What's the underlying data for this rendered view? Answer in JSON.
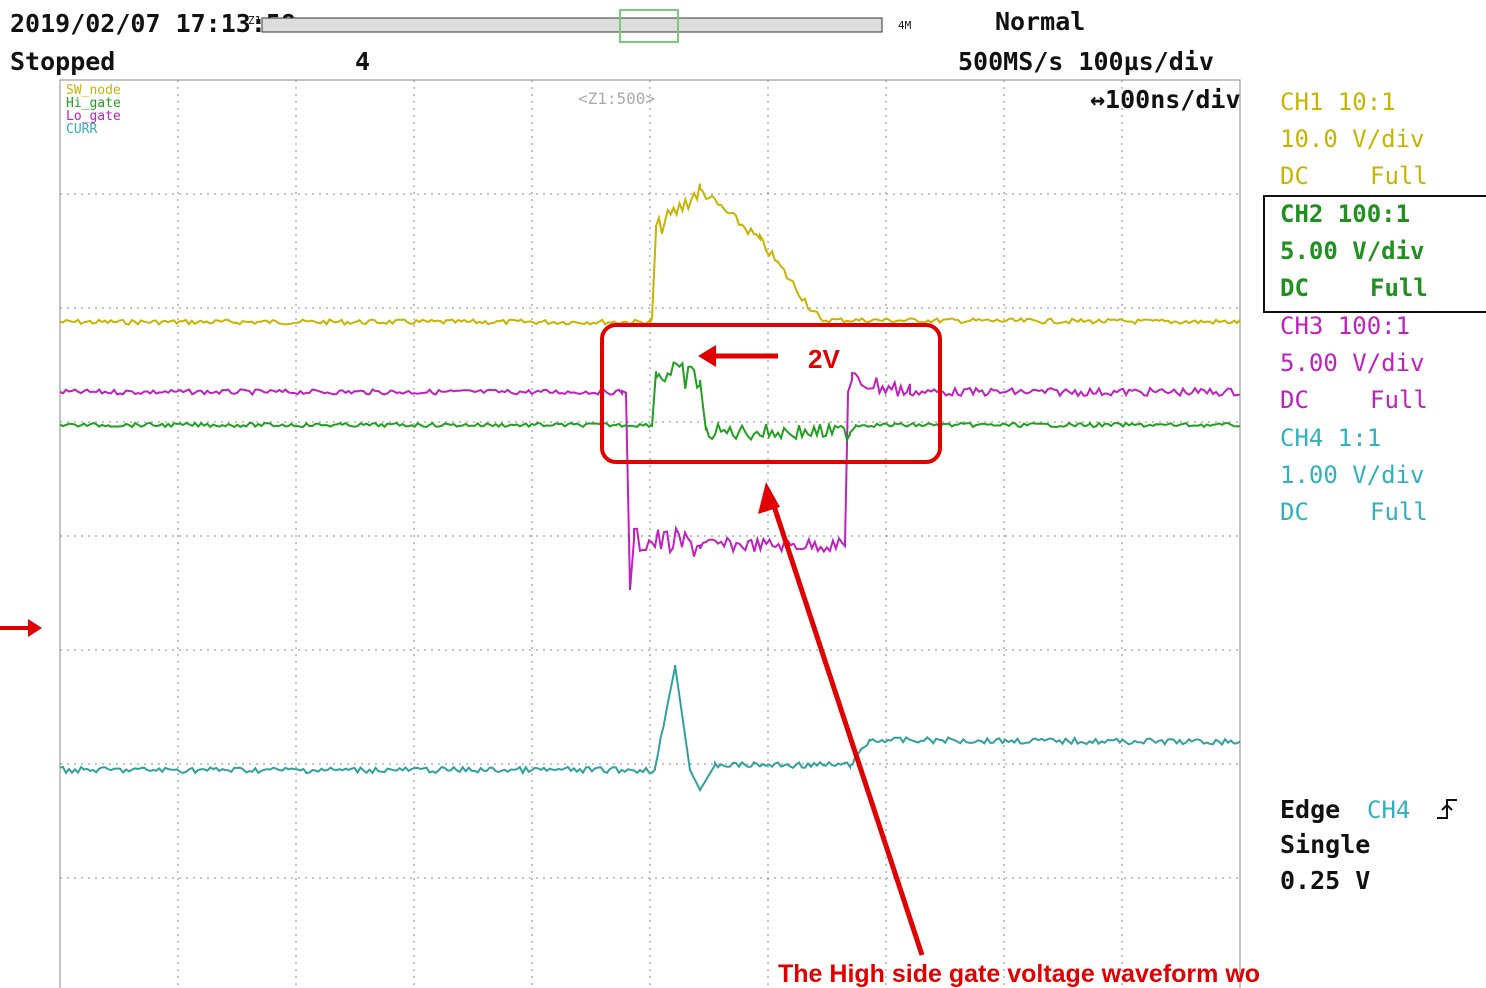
{
  "header": {
    "timestamp": "2019/02/07 17:13:58",
    "zoom_tag": "Z1",
    "memory": "4M",
    "mode": "Normal",
    "status": "Stopped",
    "record": "4",
    "sample_rate": "500MS/s 100µs/div",
    "zoom_label": "<Z1:500>",
    "zoom_div": "↔100ns/div"
  },
  "legend": [
    "SW_node",
    "Hi_gate",
    "Lo_gate",
    "CURR"
  ],
  "channels": [
    {
      "name": "CH1 10:1",
      "scale": "10.0 V/div",
      "coupling": "DC",
      "bandwidth": "Full"
    },
    {
      "name": "CH2 100:1",
      "scale": "5.00 V/div",
      "coupling": "DC",
      "bandwidth": "Full"
    },
    {
      "name": "CH3 100:1",
      "scale": "5.00 V/div",
      "coupling": "DC",
      "bandwidth": "Full"
    },
    {
      "name": "CH4 1:1",
      "scale": "1.00 V/div",
      "coupling": "DC",
      "bandwidth": "Full"
    }
  ],
  "trigger": {
    "type": "Edge",
    "source": "CH4",
    "mode": "Single",
    "level": "0.25 V"
  },
  "annotations": {
    "box_label": "2V",
    "note": "The High side gate voltage waveform wo"
  }
}
